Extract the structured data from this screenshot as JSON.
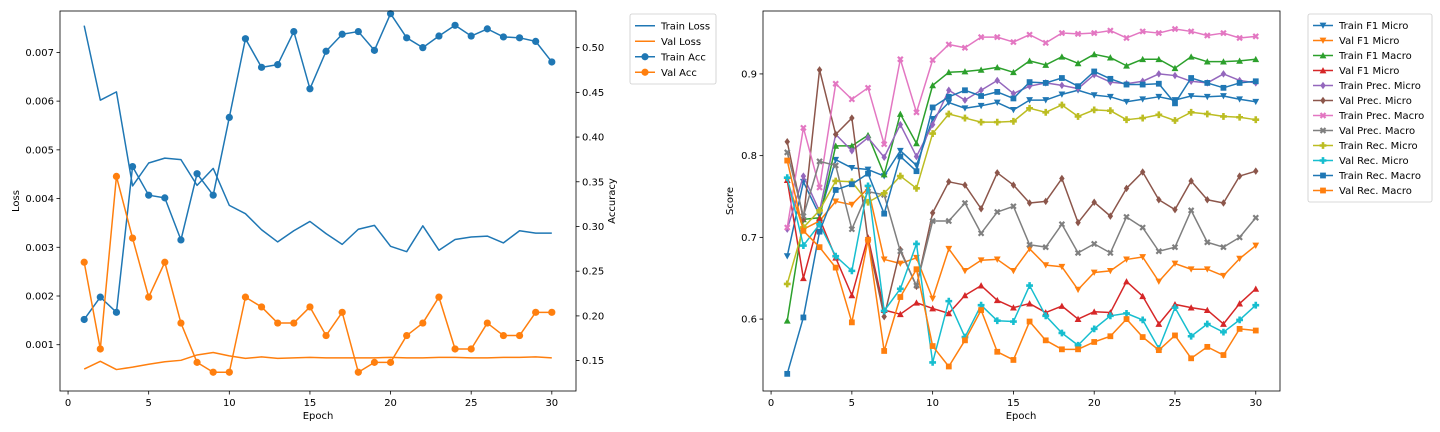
{
  "chart_data": [
    {
      "type": "line",
      "xlabel": "Epoch",
      "ylabel": "Loss",
      "y2label": "Accuracy",
      "x": [
        1,
        2,
        3,
        4,
        5,
        6,
        7,
        8,
        9,
        10,
        11,
        12,
        13,
        14,
        15,
        16,
        17,
        18,
        19,
        20,
        21,
        22,
        23,
        24,
        25,
        26,
        27,
        28,
        29,
        30
      ],
      "xticks": [
        0,
        5,
        10,
        15,
        20,
        25,
        30
      ],
      "xlim": [
        -0.5,
        31.5
      ],
      "ylim": [
        5e-05,
        0.00785
      ],
      "yticks": [
        0.001,
        0.002,
        0.003,
        0.004,
        0.005,
        0.006,
        0.007
      ],
      "ytick_labels": [
        "0.001",
        "0.002",
        "0.003",
        "0.004",
        "0.005",
        "0.006",
        "0.007"
      ],
      "y2lim": [
        0.116,
        0.541
      ],
      "y2ticks": [
        0.15,
        0.2,
        0.25,
        0.3,
        0.35,
        0.4,
        0.45,
        0.5
      ],
      "y2tick_labels": [
        "0.15",
        "0.20",
        "0.25",
        "0.30",
        "0.35",
        "0.40",
        "0.45",
        "0.50"
      ],
      "legend_position": "outside top-right",
      "grid": false,
      "series": [
        {
          "name": "Train Loss",
          "axis": "left",
          "color": "#1f77b4",
          "marker": "none",
          "values": [
            0.00755,
            0.00602,
            0.00619,
            0.00426,
            0.00473,
            0.00483,
            0.0048,
            0.00427,
            0.00462,
            0.00386,
            0.00369,
            0.00336,
            0.00311,
            0.00334,
            0.00353,
            0.00328,
            0.00306,
            0.00337,
            0.00345,
            0.00302,
            0.00291,
            0.00344,
            0.00294,
            0.00316,
            0.00321,
            0.00323,
            0.00309,
            0.00334,
            0.00329,
            0.00329
          ]
        },
        {
          "name": "Val Loss",
          "axis": "left",
          "color": "#ff7f0e",
          "marker": "none",
          "values": [
            0.0005,
            0.00066,
            0.00049,
            0.00054,
            0.0006,
            0.00065,
            0.00068,
            0.00079,
            0.00084,
            0.00077,
            0.00072,
            0.00075,
            0.00072,
            0.00073,
            0.00074,
            0.00073,
            0.00073,
            0.00073,
            0.00073,
            0.00074,
            0.00073,
            0.00073,
            0.00074,
            0.00074,
            0.00073,
            0.00073,
            0.00074,
            0.00074,
            0.00075,
            0.00073
          ]
        },
        {
          "name": "Train Acc",
          "axis": "right",
          "color": "#1f77b4",
          "marker": "circle",
          "values": [
            0.196,
            0.221,
            0.204,
            0.367,
            0.335,
            0.332,
            0.285,
            0.359,
            0.335,
            0.422,
            0.51,
            0.478,
            0.481,
            0.518,
            0.454,
            0.496,
            0.515,
            0.518,
            0.497,
            0.538,
            0.511,
            0.5,
            0.513,
            0.525,
            0.513,
            0.521,
            0.512,
            0.511,
            0.507,
            0.484
          ]
        },
        {
          "name": "Val Acc",
          "axis": "right",
          "color": "#ff7f0e",
          "marker": "circle",
          "values": [
            0.26,
            0.163,
            0.356,
            0.287,
            0.221,
            0.26,
            0.192,
            0.148,
            0.137,
            0.137,
            0.221,
            0.21,
            0.192,
            0.192,
            0.21,
            0.178,
            0.204,
            0.137,
            0.148,
            0.148,
            0.178,
            0.192,
            0.221,
            0.163,
            0.163,
            0.192,
            0.178,
            0.178,
            0.204,
            0.204
          ]
        }
      ]
    },
    {
      "type": "line",
      "xlabel": "Epoch",
      "ylabel": "Score",
      "x": [
        1,
        2,
        3,
        4,
        5,
        6,
        7,
        8,
        9,
        10,
        11,
        12,
        13,
        14,
        15,
        16,
        17,
        18,
        19,
        20,
        21,
        22,
        23,
        24,
        25,
        26,
        27,
        28,
        29,
        30
      ],
      "xticks": [
        0,
        5,
        10,
        15,
        20,
        25,
        30
      ],
      "xlim": [
        -0.5,
        31.5
      ],
      "ylim": [
        0.512,
        0.977
      ],
      "yticks": [
        0.6,
        0.7,
        0.8,
        0.9
      ],
      "ytick_labels": [
        "0.6",
        "0.7",
        "0.8",
        "0.9"
      ],
      "legend_position": "outside top-right",
      "grid": false,
      "series": [
        {
          "name": "Train F1 Micro",
          "color": "#1f77b4",
          "marker": "triangle-down",
          "values": [
            0.677,
            0.768,
            0.727,
            0.795,
            0.785,
            0.783,
            0.775,
            0.806,
            0.788,
            0.845,
            0.865,
            0.858,
            0.861,
            0.865,
            0.856,
            0.868,
            0.868,
            0.875,
            0.88,
            0.874,
            0.872,
            0.866,
            0.869,
            0.872,
            0.868,
            0.873,
            0.872,
            0.873,
            0.869,
            0.866
          ]
        },
        {
          "name": "Val F1 Micro",
          "color": "#ff7f0e",
          "marker": "triangle-down",
          "values": [
            0.77,
            0.71,
            0.72,
            0.744,
            0.74,
            0.76,
            0.673,
            0.668,
            0.675,
            0.625,
            0.686,
            0.659,
            0.672,
            0.673,
            0.659,
            0.686,
            0.666,
            0.664,
            0.636,
            0.657,
            0.659,
            0.673,
            0.676,
            0.646,
            0.668,
            0.661,
            0.661,
            0.653,
            0.674,
            0.69
          ]
        },
        {
          "name": "Train F1 Macro",
          "color": "#2ca02c",
          "marker": "triangle-up",
          "values": [
            0.598,
            0.722,
            0.724,
            0.812,
            0.812,
            0.825,
            0.777,
            0.851,
            0.815,
            0.886,
            0.902,
            0.903,
            0.905,
            0.908,
            0.902,
            0.916,
            0.911,
            0.921,
            0.913,
            0.924,
            0.92,
            0.91,
            0.918,
            0.918,
            0.907,
            0.921,
            0.915,
            0.915,
            0.916,
            0.918
          ]
        },
        {
          "name": "Val F1 Micro",
          "color": "#d62728",
          "marker": "triangle-up",
          "values": [
            0.77,
            0.65,
            0.723,
            0.675,
            0.629,
            0.7,
            0.611,
            0.606,
            0.62,
            0.613,
            0.607,
            0.629,
            0.641,
            0.623,
            0.614,
            0.619,
            0.608,
            0.616,
            0.6,
            0.609,
            0.608,
            0.646,
            0.628,
            0.594,
            0.618,
            0.614,
            0.611,
            0.594,
            0.619,
            0.637
          ]
        },
        {
          "name": "Train Prec. Micro",
          "color": "#9467bd",
          "marker": "diamond",
          "values": [
            0.71,
            0.775,
            0.732,
            0.826,
            0.806,
            0.822,
            0.798,
            0.838,
            0.799,
            0.838,
            0.88,
            0.868,
            0.88,
            0.892,
            0.876,
            0.885,
            0.889,
            0.886,
            0.882,
            0.899,
            0.89,
            0.888,
            0.891,
            0.9,
            0.898,
            0.891,
            0.889,
            0.9,
            0.892,
            0.889
          ]
        },
        {
          "name": "Val Prec. Micro",
          "color": "#8c564b",
          "marker": "diamond",
          "values": [
            0.817,
            0.722,
            0.905,
            0.826,
            0.846,
            0.696,
            0.603,
            0.685,
            0.64,
            0.73,
            0.768,
            0.764,
            0.735,
            0.779,
            0.764,
            0.742,
            0.744,
            0.772,
            0.718,
            0.743,
            0.726,
            0.76,
            0.78,
            0.746,
            0.734,
            0.769,
            0.746,
            0.742,
            0.775,
            0.781
          ]
        },
        {
          "name": "Train Prec. Macro",
          "color": "#e377c2",
          "marker": "x",
          "values": [
            0.712,
            0.834,
            0.761,
            0.888,
            0.869,
            0.883,
            0.814,
            0.918,
            0.853,
            0.917,
            0.936,
            0.932,
            0.945,
            0.945,
            0.939,
            0.948,
            0.938,
            0.95,
            0.949,
            0.95,
            0.953,
            0.944,
            0.952,
            0.95,
            0.955,
            0.952,
            0.947,
            0.95,
            0.944,
            0.946
          ]
        },
        {
          "name": "Val Prec. Macro",
          "color": "#7f7f7f",
          "marker": "x",
          "values": [
            0.804,
            0.726,
            0.793,
            0.788,
            0.71,
            0.756,
            0.752,
            0.683,
            0.641,
            0.72,
            0.72,
            0.742,
            0.705,
            0.731,
            0.738,
            0.691,
            0.688,
            0.716,
            0.681,
            0.692,
            0.681,
            0.725,
            0.712,
            0.683,
            0.688,
            0.733,
            0.694,
            0.688,
            0.7,
            0.724
          ]
        },
        {
          "name": "Train Rec. Micro",
          "color": "#bcbd22",
          "marker": "plus",
          "values": [
            0.643,
            0.712,
            0.733,
            0.769,
            0.768,
            0.743,
            0.754,
            0.775,
            0.76,
            0.827,
            0.851,
            0.846,
            0.841,
            0.841,
            0.842,
            0.858,
            0.853,
            0.862,
            0.848,
            0.856,
            0.855,
            0.844,
            0.846,
            0.85,
            0.843,
            0.853,
            0.851,
            0.848,
            0.847,
            0.844
          ]
        },
        {
          "name": "Val Rec. Micro",
          "color": "#17becf",
          "marker": "plus",
          "values": [
            0.773,
            0.69,
            0.716,
            0.677,
            0.659,
            0.763,
            0.61,
            0.637,
            0.692,
            0.547,
            0.622,
            0.578,
            0.617,
            0.598,
            0.597,
            0.641,
            0.604,
            0.583,
            0.568,
            0.588,
            0.604,
            0.607,
            0.599,
            0.564,
            0.614,
            0.579,
            0.594,
            0.584,
            0.599,
            0.617
          ]
        },
        {
          "name": "Train Rec. Macro",
          "color": "#1f77b4",
          "marker": "square",
          "values": [
            0.533,
            0.602,
            0.707,
            0.758,
            0.765,
            0.778,
            0.729,
            0.799,
            0.781,
            0.859,
            0.872,
            0.88,
            0.873,
            0.878,
            0.87,
            0.89,
            0.889,
            0.895,
            0.885,
            0.903,
            0.894,
            0.887,
            0.887,
            0.888,
            0.864,
            0.895,
            0.889,
            0.883,
            0.889,
            0.891
          ]
        },
        {
          "name": "Val Rec. Macro",
          "color": "#ff7f0e",
          "marker": "square",
          "values": [
            0.794,
            0.708,
            0.688,
            0.663,
            0.596,
            0.697,
            0.561,
            0.627,
            0.661,
            0.567,
            0.542,
            0.574,
            0.611,
            0.56,
            0.55,
            0.597,
            0.574,
            0.563,
            0.563,
            0.572,
            0.579,
            0.6,
            0.578,
            0.562,
            0.58,
            0.552,
            0.566,
            0.556,
            0.588,
            0.586
          ]
        }
      ]
    }
  ]
}
